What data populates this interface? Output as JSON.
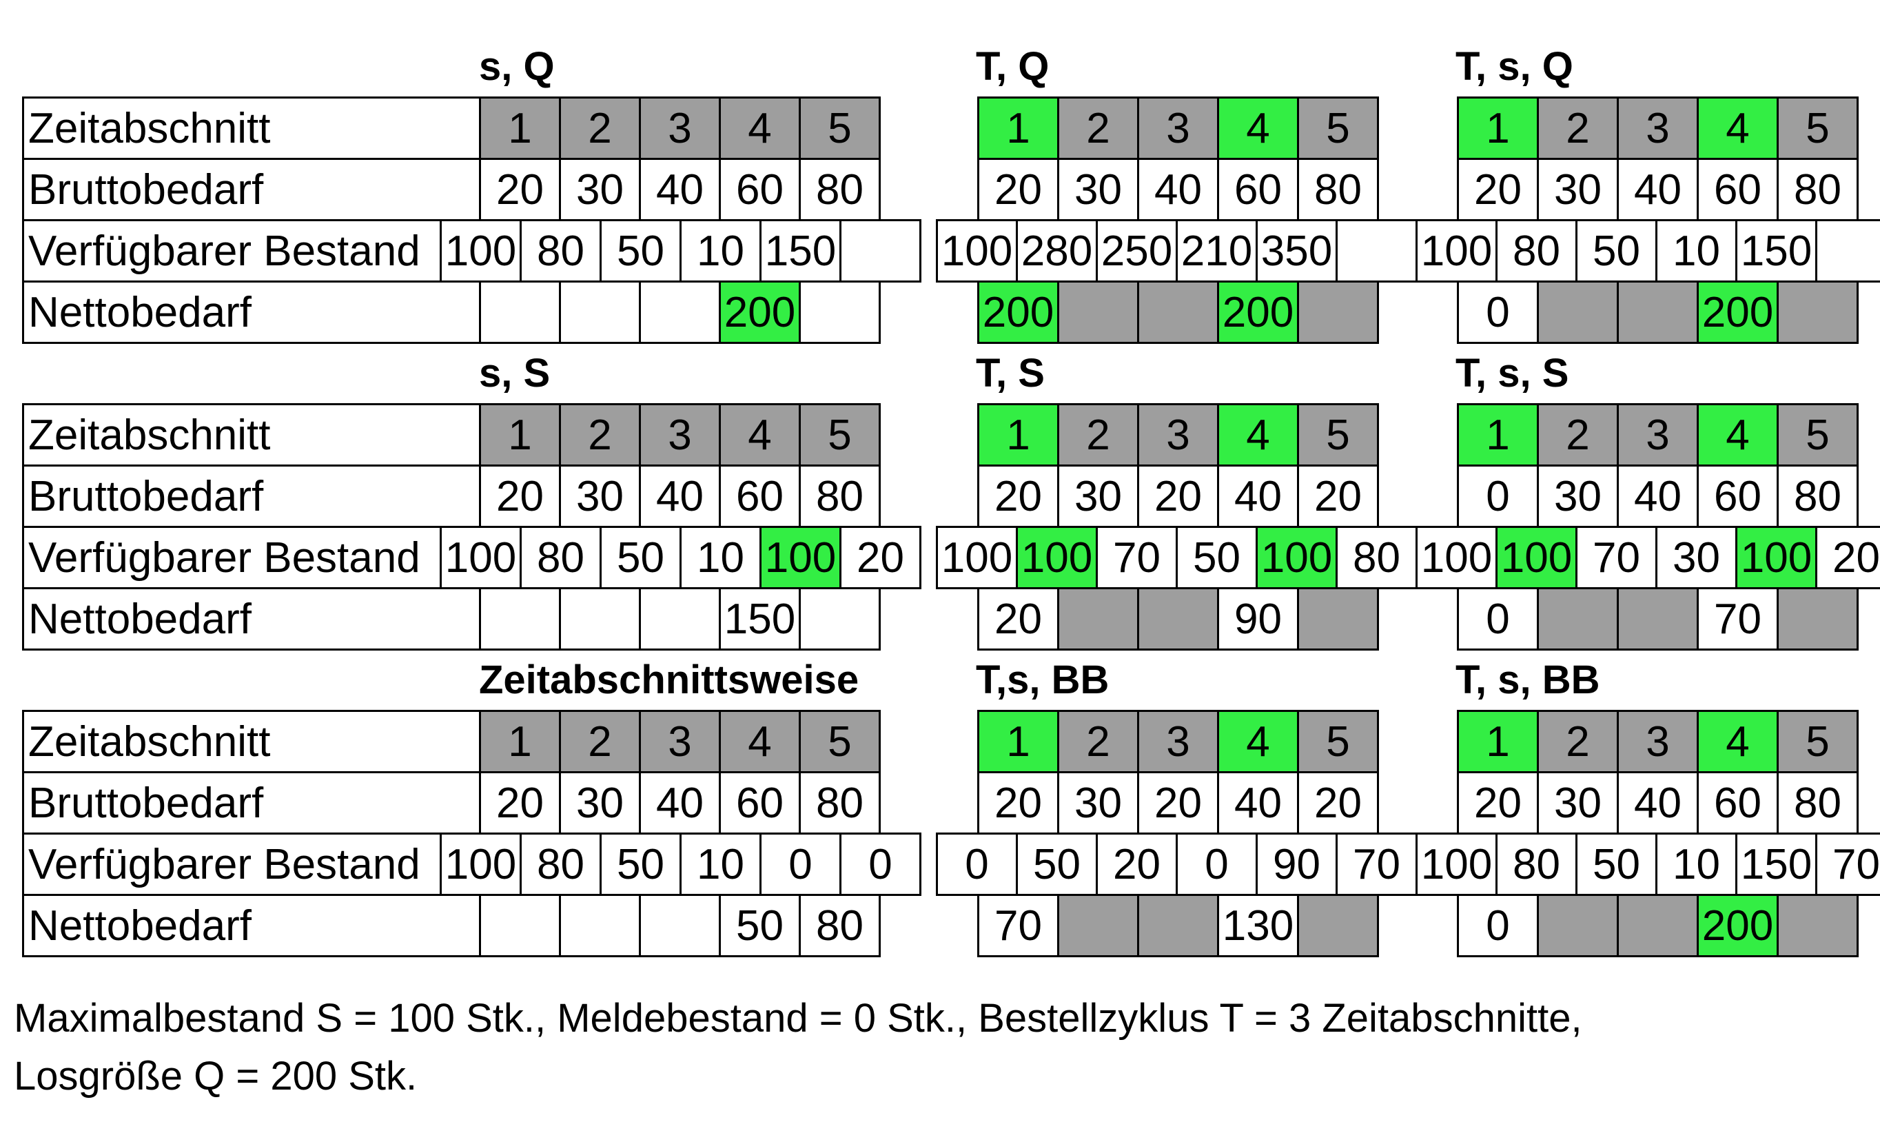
{
  "row_labels": {
    "period": "Zeitabschnitt",
    "gross": "Bruttobedarf",
    "available": "Verfügbarer Bestand",
    "net": "Nettobedarf"
  },
  "colors": {
    "green": "#33ee44",
    "gray": "#9e9e9e",
    "white": "#ffffff"
  },
  "tables": [
    {
      "title": "s, Q",
      "col": 0,
      "row": 0,
      "periods": [
        {
          "v": "1",
          "c": "gray"
        },
        {
          "v": "2",
          "c": "gray"
        },
        {
          "v": "3",
          "c": "gray"
        },
        {
          "v": "4",
          "c": "gray"
        },
        {
          "v": "5",
          "c": "gray"
        }
      ],
      "gross": [
        {
          "v": "20"
        },
        {
          "v": "30"
        },
        {
          "v": "40"
        },
        {
          "v": "60"
        },
        {
          "v": "80"
        }
      ],
      "available": [
        {
          "v": "100"
        },
        {
          "v": "80"
        },
        {
          "v": "50"
        },
        {
          "v": "10"
        },
        {
          "v": "150"
        },
        {
          "v": ""
        }
      ],
      "net": [
        {
          "v": ""
        },
        {
          "v": ""
        },
        {
          "v": ""
        },
        {
          "v": "200",
          "c": "green"
        },
        {
          "v": ""
        }
      ]
    },
    {
      "title": "T, Q",
      "col": 1,
      "row": 0,
      "periods": [
        {
          "v": "1",
          "c": "green"
        },
        {
          "v": "2",
          "c": "gray"
        },
        {
          "v": "3",
          "c": "gray"
        },
        {
          "v": "4",
          "c": "green"
        },
        {
          "v": "5",
          "c": "gray"
        }
      ],
      "gross": [
        {
          "v": "20"
        },
        {
          "v": "30"
        },
        {
          "v": "40"
        },
        {
          "v": "60"
        },
        {
          "v": "80"
        }
      ],
      "available": [
        {
          "v": "100"
        },
        {
          "v": "280"
        },
        {
          "v": "250"
        },
        {
          "v": "210"
        },
        {
          "v": "350"
        },
        {
          "v": ""
        }
      ],
      "net": [
        {
          "v": "200",
          "c": "green"
        },
        {
          "v": "",
          "c": "gray"
        },
        {
          "v": "",
          "c": "gray"
        },
        {
          "v": "200",
          "c": "green"
        },
        {
          "v": "",
          "c": "gray"
        }
      ]
    },
    {
      "title": "T, s, Q",
      "col": 2,
      "row": 0,
      "periods": [
        {
          "v": "1",
          "c": "green"
        },
        {
          "v": "2",
          "c": "gray"
        },
        {
          "v": "3",
          "c": "gray"
        },
        {
          "v": "4",
          "c": "green"
        },
        {
          "v": "5",
          "c": "gray"
        }
      ],
      "gross": [
        {
          "v": "20"
        },
        {
          "v": "30"
        },
        {
          "v": "40"
        },
        {
          "v": "60"
        },
        {
          "v": "80"
        }
      ],
      "available": [
        {
          "v": "100"
        },
        {
          "v": "80"
        },
        {
          "v": "50"
        },
        {
          "v": "10"
        },
        {
          "v": "150"
        },
        {
          "v": ""
        }
      ],
      "net": [
        {
          "v": "0"
        },
        {
          "v": "",
          "c": "gray"
        },
        {
          "v": "",
          "c": "gray"
        },
        {
          "v": "200",
          "c": "green"
        },
        {
          "v": "",
          "c": "gray"
        }
      ]
    },
    {
      "title": "s, S",
      "col": 0,
      "row": 1,
      "periods": [
        {
          "v": "1",
          "c": "gray"
        },
        {
          "v": "2",
          "c": "gray"
        },
        {
          "v": "3",
          "c": "gray"
        },
        {
          "v": "4",
          "c": "gray"
        },
        {
          "v": "5",
          "c": "gray"
        }
      ],
      "gross": [
        {
          "v": "20"
        },
        {
          "v": "30"
        },
        {
          "v": "40"
        },
        {
          "v": "60"
        },
        {
          "v": "80"
        }
      ],
      "available": [
        {
          "v": "100"
        },
        {
          "v": "80"
        },
        {
          "v": "50"
        },
        {
          "v": "10"
        },
        {
          "v": "100",
          "c": "green"
        },
        {
          "v": "20"
        }
      ],
      "net": [
        {
          "v": ""
        },
        {
          "v": ""
        },
        {
          "v": ""
        },
        {
          "v": "150"
        },
        {
          "v": ""
        }
      ]
    },
    {
      "title": "T, S",
      "col": 1,
      "row": 1,
      "periods": [
        {
          "v": "1",
          "c": "green"
        },
        {
          "v": "2",
          "c": "gray"
        },
        {
          "v": "3",
          "c": "gray"
        },
        {
          "v": "4",
          "c": "green"
        },
        {
          "v": "5",
          "c": "gray"
        }
      ],
      "gross": [
        {
          "v": "20"
        },
        {
          "v": "30"
        },
        {
          "v": "20"
        },
        {
          "v": "40"
        },
        {
          "v": "20"
        }
      ],
      "available": [
        {
          "v": "100"
        },
        {
          "v": "100",
          "c": "green"
        },
        {
          "v": "70"
        },
        {
          "v": "50"
        },
        {
          "v": "100",
          "c": "green"
        },
        {
          "v": "80"
        }
      ],
      "net": [
        {
          "v": "20"
        },
        {
          "v": "",
          "c": "gray"
        },
        {
          "v": "",
          "c": "gray"
        },
        {
          "v": "90"
        },
        {
          "v": "",
          "c": "gray"
        }
      ]
    },
    {
      "title": "T, s, S",
      "col": 2,
      "row": 1,
      "periods": [
        {
          "v": "1",
          "c": "green"
        },
        {
          "v": "2",
          "c": "gray"
        },
        {
          "v": "3",
          "c": "gray"
        },
        {
          "v": "4",
          "c": "green"
        },
        {
          "v": "5",
          "c": "gray"
        }
      ],
      "gross": [
        {
          "v": "0"
        },
        {
          "v": "30"
        },
        {
          "v": "40"
        },
        {
          "v": "60"
        },
        {
          "v": "80"
        }
      ],
      "available": [
        {
          "v": "100"
        },
        {
          "v": "100",
          "c": "green"
        },
        {
          "v": "70"
        },
        {
          "v": "30"
        },
        {
          "v": "100",
          "c": "green"
        },
        {
          "v": "20"
        }
      ],
      "net": [
        {
          "v": "0"
        },
        {
          "v": "",
          "c": "gray"
        },
        {
          "v": "",
          "c": "gray"
        },
        {
          "v": "70"
        },
        {
          "v": "",
          "c": "gray"
        }
      ]
    },
    {
      "title": "Zeitabschnittsweise",
      "col": 0,
      "row": 2,
      "periods": [
        {
          "v": "1",
          "c": "gray"
        },
        {
          "v": "2",
          "c": "gray"
        },
        {
          "v": "3",
          "c": "gray"
        },
        {
          "v": "4",
          "c": "gray"
        },
        {
          "v": "5",
          "c": "gray"
        }
      ],
      "gross": [
        {
          "v": "20"
        },
        {
          "v": "30"
        },
        {
          "v": "40"
        },
        {
          "v": "60"
        },
        {
          "v": "80"
        }
      ],
      "available": [
        {
          "v": "100"
        },
        {
          "v": "80"
        },
        {
          "v": "50"
        },
        {
          "v": "10"
        },
        {
          "v": "0"
        },
        {
          "v": "0"
        }
      ],
      "net": [
        {
          "v": ""
        },
        {
          "v": ""
        },
        {
          "v": ""
        },
        {
          "v": "50"
        },
        {
          "v": "80"
        }
      ]
    },
    {
      "title": "T,s, BB",
      "col": 1,
      "row": 2,
      "periods": [
        {
          "v": "1",
          "c": "green"
        },
        {
          "v": "2",
          "c": "gray"
        },
        {
          "v": "3",
          "c": "gray"
        },
        {
          "v": "4",
          "c": "green"
        },
        {
          "v": "5",
          "c": "gray"
        }
      ],
      "gross": [
        {
          "v": "20"
        },
        {
          "v": "30"
        },
        {
          "v": "20"
        },
        {
          "v": "40"
        },
        {
          "v": "20"
        }
      ],
      "available": [
        {
          "v": "0"
        },
        {
          "v": "50"
        },
        {
          "v": "20"
        },
        {
          "v": "0"
        },
        {
          "v": "90"
        },
        {
          "v": "70"
        }
      ],
      "net": [
        {
          "v": "70"
        },
        {
          "v": "",
          "c": "gray"
        },
        {
          "v": "",
          "c": "gray"
        },
        {
          "v": "130"
        },
        {
          "v": "",
          "c": "gray"
        }
      ]
    },
    {
      "title": "T, s, BB",
      "col": 2,
      "row": 2,
      "periods": [
        {
          "v": "1",
          "c": "green"
        },
        {
          "v": "2",
          "c": "gray"
        },
        {
          "v": "3",
          "c": "gray"
        },
        {
          "v": "4",
          "c": "green"
        },
        {
          "v": "5",
          "c": "gray"
        }
      ],
      "gross": [
        {
          "v": "20"
        },
        {
          "v": "30"
        },
        {
          "v": "40"
        },
        {
          "v": "60"
        },
        {
          "v": "80"
        }
      ],
      "available": [
        {
          "v": "100"
        },
        {
          "v": "80"
        },
        {
          "v": "50"
        },
        {
          "v": "10"
        },
        {
          "v": "150"
        },
        {
          "v": "70"
        }
      ],
      "net": [
        {
          "v": "0"
        },
        {
          "v": "",
          "c": "gray"
        },
        {
          "v": "",
          "c": "gray"
        },
        {
          "v": "200",
          "c": "green"
        },
        {
          "v": "",
          "c": "gray"
        }
      ]
    }
  ],
  "footnote": {
    "line1": "Maximalbestand S = 100 Stk., Meldebestand = 0 Stk., Bestellzyklus T = 3 Zeitabschnitte,",
    "line2": "Losgröße Q = 200 Stk."
  }
}
